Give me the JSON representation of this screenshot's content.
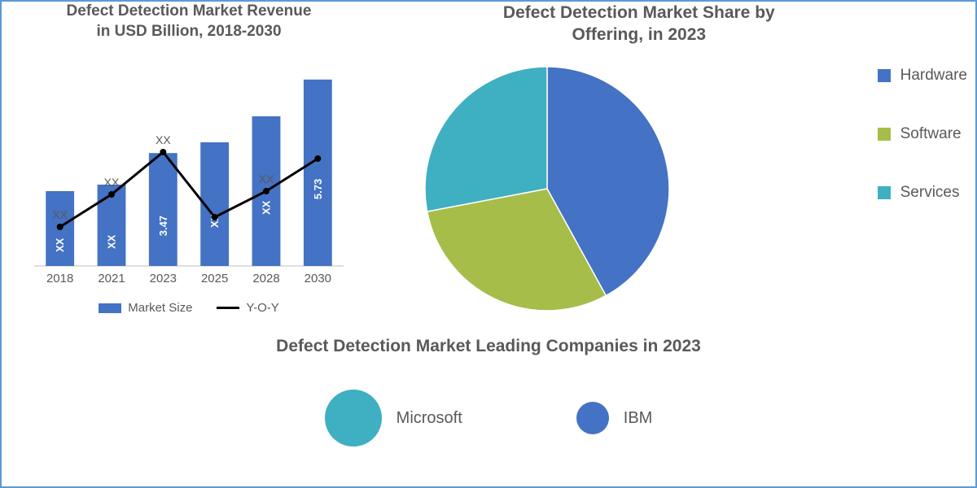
{
  "bar_chart": {
    "title_line1": "Defect Detection Market Revenue",
    "title_line2": "in USD Billion, 2018-2030",
    "title_fontsize": 19,
    "type": "bar+line",
    "categories": [
      "2018",
      "2021",
      "2023",
      "2025",
      "2028",
      "2030"
    ],
    "bar_values": [
      2.3,
      2.5,
      3.47,
      3.8,
      4.6,
      5.73
    ],
    "bar_value_labels": [
      "XX",
      "XX",
      "3.47",
      "XX",
      "XX",
      "5.73"
    ],
    "line_values": [
      1.2,
      2.2,
      3.5,
      1.5,
      2.3,
      3.3
    ],
    "xx_above_labels": [
      "XX",
      "XX",
      "XX",
      "",
      "XX",
      ""
    ],
    "bar_color": "#4472c4",
    "line_color": "#000000",
    "bar_width": 0.55,
    "ylim": [
      0,
      6
    ],
    "plot_bg": "#ffffff",
    "legend": [
      {
        "label": "Market Size",
        "type": "swatch",
        "color": "#4472c4"
      },
      {
        "label": "Y-O-Y",
        "type": "line",
        "color": "#000000"
      }
    ]
  },
  "pie_chart": {
    "title_line1": "Defect Detection Market Share by",
    "title_line2": "Offering, in 2023",
    "title_fontsize": 21,
    "type": "pie",
    "slices": [
      {
        "label": "Hardware",
        "value": 42,
        "color": "#4472c4"
      },
      {
        "label": "Software",
        "value": 30,
        "color": "#a6bd4a"
      },
      {
        "label": "Services",
        "value": 28,
        "color": "#3fafc2"
      }
    ],
    "radius": 150,
    "bg": "#ffffff"
  },
  "bubbles": {
    "title": "Defect Detection Market Leading Companies in 2023",
    "title_fontsize": 21,
    "items": [
      {
        "label": "Microsoft",
        "size": 70,
        "color": "#3fafc2"
      },
      {
        "label": "IBM",
        "size": 40,
        "color": "#4472c4"
      }
    ]
  },
  "colors": {
    "border": "#5b9bd5",
    "text": "#595959"
  }
}
